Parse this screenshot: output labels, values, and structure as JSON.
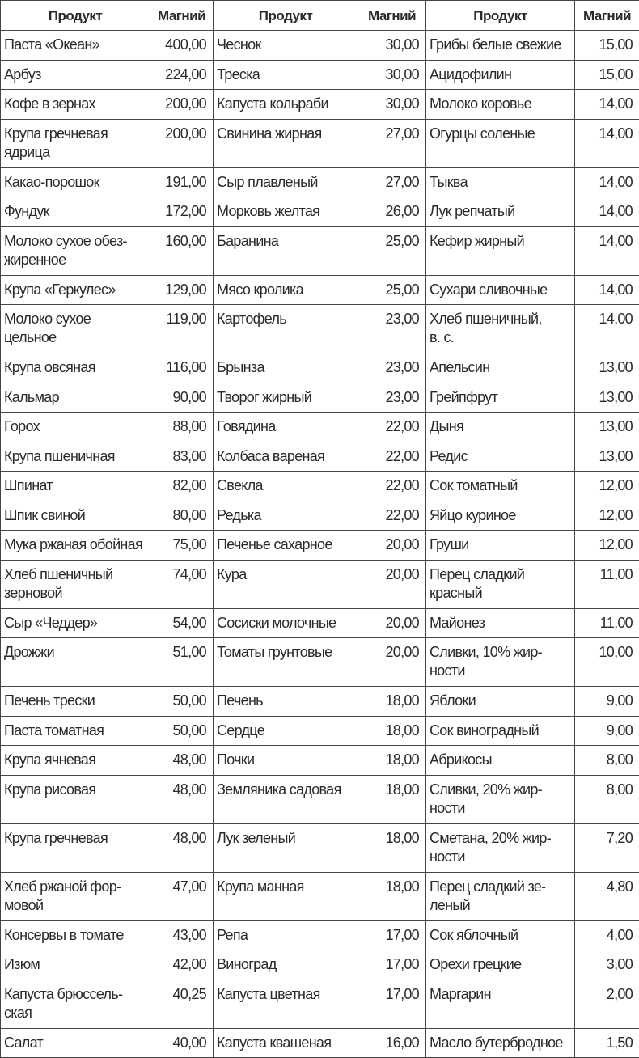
{
  "headers": [
    "Продукт",
    "Магний",
    "Продукт",
    "Магний",
    "Продукт",
    "Магний"
  ],
  "rows": [
    [
      "Паста «Океан»",
      "400,00",
      "Чеснок",
      "30,00",
      "Грибы белые свежие",
      "15,00"
    ],
    [
      "Арбуз",
      "224,00",
      "Треска",
      "30,00",
      "Ацидофилин",
      "15,00"
    ],
    [
      "Кофе в зернах",
      "200,00",
      "Капуста кольраби",
      "30,00",
      "Молоко коровье",
      "14,00"
    ],
    [
      "Крупа гречневая\nядрица",
      "200,00",
      "Свинина жирная",
      "27,00",
      "Огурцы соленые",
      "14,00"
    ],
    [
      "Какао-порошок",
      "191,00",
      "Сыр плавленый",
      "27,00",
      "Тыква",
      "14,00"
    ],
    [
      "Фундук",
      "172,00",
      "Морковь желтая",
      "26,00",
      "Лук репчатый",
      "14,00"
    ],
    [
      "Молоко сухое обез-\nжиренное",
      "160,00",
      "Баранина",
      "25,00",
      "Кефир жирный",
      "14,00"
    ],
    [
      "Крупа «Геркулес»",
      "129,00",
      "Мясо кролика",
      "25,00",
      "Сухари сливочные",
      "14,00"
    ],
    [
      "Молоко сухое\nцельное",
      "119,00",
      "Картофель",
      "23,00",
      "Хлеб пшеничный,\nв. с.",
      "14,00"
    ],
    [
      "Крупа овсяная",
      "116,00",
      "Брынза",
      "23,00",
      "Апельсин",
      "13,00"
    ],
    [
      "Кальмар",
      "90,00",
      "Творог жирный",
      "23,00",
      "Грейпфрут",
      "13,00"
    ],
    [
      "Горох",
      "88,00",
      "Говядина",
      "22,00",
      "Дыня",
      "13,00"
    ],
    [
      "Крупа пшеничная",
      "83,00",
      "Колбаса вареная",
      "22,00",
      "Редис",
      "13,00"
    ],
    [
      "Шпинат",
      "82,00",
      "Свекла",
      "22,00",
      "Сок томатный",
      "12,00"
    ],
    [
      "Шпик свиной",
      "80,00",
      "Редька",
      "22,00",
      "Яйцо куриное",
      "12,00"
    ],
    [
      "Мука ржаная обойная",
      "75,00",
      "Печенье сахарное",
      "20,00",
      "Груши",
      "12,00"
    ],
    [
      "Хлеб пшеничный\nзерновой",
      "74,00",
      "Кура",
      "20,00",
      "Перец сладкий\nкрасный",
      "11,00"
    ],
    [
      "Сыр «Чеддер»",
      "54,00",
      "Сосиски молочные",
      "20,00",
      "Майонез",
      "11,00"
    ],
    [
      "Дрожжи",
      "51,00",
      "Томаты грунтовые",
      "20,00",
      "Сливки, 10% жир-\nности",
      "10,00"
    ],
    [
      "Печень трески",
      "50,00",
      "Печень",
      "18,00",
      "Яблоки",
      "9,00"
    ],
    [
      "Паста томатная",
      "50,00",
      "Сердце",
      "18,00",
      "Сок виноградный",
      "9,00"
    ],
    [
      "Крупа ячневая",
      "48,00",
      "Почки",
      "18,00",
      "Абрикосы",
      "8,00"
    ],
    [
      "Крупа рисовая",
      "48,00",
      "Земляника садовая",
      "18,00",
      "Сливки, 20% жир-\nности",
      "8,00"
    ],
    [
      "Крупа гречневая",
      "48,00",
      "Лук зеленый",
      "18,00",
      "Сметана, 20% жир-\nности",
      "7,20"
    ],
    [
      "Хлеб ржаной фор-\nмовой",
      "47,00",
      "Крупа манная",
      "18,00",
      "Перец сладкий зе-\nленый",
      "4,80"
    ],
    [
      "Консервы в томате",
      "43,00",
      "Репа",
      "17,00",
      "Сок яблочный",
      "4,00"
    ],
    [
      "Изюм",
      "42,00",
      "Виноград",
      "17,00",
      "Орехи грецкие",
      "3,00"
    ],
    [
      "Капуста брюссель-\nская",
      "40,25",
      "Капуста цветная",
      "17,00",
      "Маргарин",
      "2,00"
    ],
    [
      "Салат",
      "40,00",
      "Капуста квашеная",
      "16,00",
      "Масло бутербродное",
      "1,50"
    ]
  ]
}
